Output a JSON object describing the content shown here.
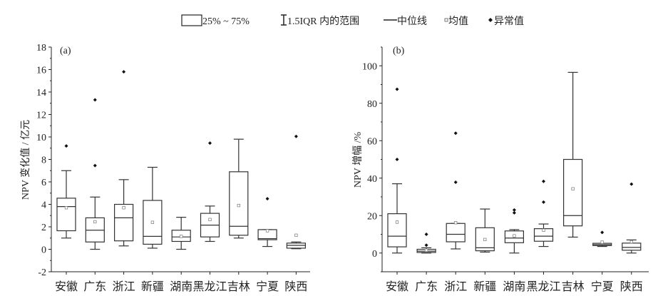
{
  "legend": {
    "box": "25% ~ 75%",
    "whisker": "1.5IQR 内的范围",
    "median": "中位线",
    "mean": "均值",
    "outlier": "异常值"
  },
  "chart_data": [
    {
      "type": "boxplot",
      "panel_label": "(a)",
      "ylabel": "NPV 变化值 / 亿元",
      "ylim": [
        -2,
        18
      ],
      "yticks": [
        -2,
        0,
        2,
        4,
        6,
        8,
        10,
        12,
        14,
        16,
        18
      ],
      "categories": [
        "安徽",
        "广东",
        "浙江",
        "新疆",
        "湖南",
        "黑龙江",
        "吉林",
        "宁夏",
        "陕西"
      ],
      "boxes": [
        {
          "low": 1.0,
          "q1": 1.65,
          "median": 3.8,
          "q3": 4.55,
          "high": 7.0,
          "mean": 3.7,
          "outliers": [
            9.2
          ]
        },
        {
          "low": 0.0,
          "q1": 0.65,
          "median": 1.7,
          "q3": 2.8,
          "high": 4.65,
          "mean": 2.45,
          "outliers": [
            7.45,
            13.3
          ]
        },
        {
          "low": 0.3,
          "q1": 0.75,
          "median": 2.8,
          "q3": 4.0,
          "high": 6.2,
          "mean": 3.7,
          "outliers": [
            15.8
          ]
        },
        {
          "low": 0.1,
          "q1": 0.45,
          "median": 1.15,
          "q3": 4.35,
          "high": 7.3,
          "mean": 2.4,
          "outliers": []
        },
        {
          "low": 0.0,
          "q1": 0.7,
          "median": 1.1,
          "q3": 1.7,
          "high": 2.85,
          "mean": 1.15,
          "outliers": []
        },
        {
          "low": 0.7,
          "q1": 1.1,
          "median": 2.15,
          "q3": 3.2,
          "high": 3.85,
          "mean": 2.65,
          "outliers": [
            9.45
          ]
        },
        {
          "low": 1.0,
          "q1": 1.25,
          "median": 2.05,
          "q3": 6.9,
          "high": 9.8,
          "mean": 3.9,
          "outliers": []
        },
        {
          "low": 0.25,
          "q1": 0.85,
          "median": 0.95,
          "q3": 1.75,
          "high": 1.75,
          "mean": 1.65,
          "outliers": [
            4.5
          ]
        },
        {
          "low": 0.05,
          "q1": 0.1,
          "median": 0.35,
          "q3": 0.55,
          "high": 0.65,
          "mean": 1.25,
          "outliers": [
            10.05
          ]
        }
      ]
    },
    {
      "type": "boxplot",
      "panel_label": "(b)",
      "ylabel": "NPV 增幅 /%",
      "ylim": [
        -10,
        110
      ],
      "yticks": [
        0,
        20,
        40,
        60,
        80,
        100
      ],
      "categories": [
        "安徽",
        "广东",
        "浙江",
        "新疆",
        "湖南",
        "黑龙江",
        "吉林",
        "宁夏",
        "陕西"
      ],
      "boxes": [
        {
          "low": 0,
          "q1": 3.3,
          "median": 9,
          "q3": 21,
          "high": 37,
          "mean": 16.5,
          "outliers": [
            50,
            87.5
          ]
        },
        {
          "low": 0,
          "q1": 0.3,
          "median": 1,
          "q3": 2,
          "high": 2.8,
          "mean": 1.5,
          "outliers": [
            4.2,
            10
          ]
        },
        {
          "low": 2.2,
          "q1": 6,
          "median": 10,
          "q3": 15.8,
          "high": 15.8,
          "mean": 16.2,
          "outliers": [
            37.8,
            64
          ]
        },
        {
          "low": 0.5,
          "q1": 1.2,
          "median": 2.8,
          "q3": 13.5,
          "high": 23.5,
          "mean": 7.2,
          "outliers": []
        },
        {
          "low": 0,
          "q1": 5.5,
          "median": 8,
          "q3": 11.8,
          "high": 12.5,
          "mean": 9.2,
          "outliers": [
            21.5,
            23
          ]
        },
        {
          "low": 3.5,
          "q1": 6.3,
          "median": 9,
          "q3": 13,
          "high": 15.5,
          "mean": 12.2,
          "outliers": [
            27.2,
            38.3
          ]
        },
        {
          "low": 8.5,
          "q1": 14.5,
          "median": 20,
          "q3": 50,
          "high": 96.5,
          "mean": 34.3,
          "outliers": []
        },
        {
          "low": 3.5,
          "q1": 4,
          "median": 4.5,
          "q3": 5.2,
          "high": 5.2,
          "mean": 5.8,
          "outliers": [
            11
          ]
        },
        {
          "low": 0,
          "q1": 1.5,
          "median": 3,
          "q3": 5.3,
          "high": 7,
          "mean": 6,
          "outliers": [
            36.8
          ]
        }
      ]
    }
  ]
}
